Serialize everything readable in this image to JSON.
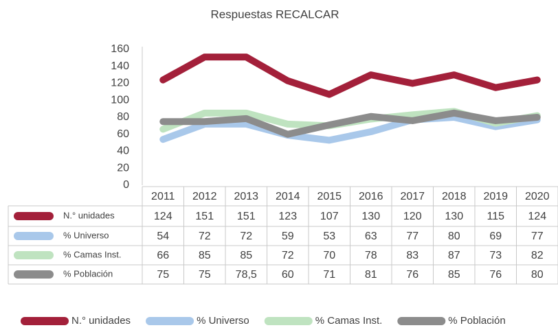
{
  "chart_data": {
    "type": "line",
    "title": "Respuestas RECALCAR",
    "categories": [
      "2011",
      "2012",
      "2013",
      "2014",
      "2015",
      "2016",
      "2017",
      "2018",
      "2019",
      "2020"
    ],
    "series": [
      {
        "name": "N.° unidades",
        "color": "#a3203a",
        "values": [
          124,
          151,
          151,
          123,
          107,
          130,
          120,
          130,
          115,
          124
        ]
      },
      {
        "name": "% Universo",
        "color": "#a9c8ea",
        "values": [
          54,
          72,
          72,
          59,
          53,
          63,
          77,
          80,
          69,
          77
        ]
      },
      {
        "name": "% Camas Inst.",
        "color": "#bfe3c0",
        "values": [
          66,
          85,
          85,
          72,
          70,
          78,
          83,
          87,
          73,
          82
        ]
      },
      {
        "name": "% Población",
        "color": "#8c8c8c",
        "values": [
          75,
          75,
          78.5,
          60,
          71,
          81,
          76,
          85,
          76,
          80
        ],
        "value_labels": [
          "75",
          "75",
          "78,5",
          "60",
          "71",
          "81",
          "76",
          "85",
          "76",
          "80"
        ]
      }
    ],
    "ylim": [
      0,
      160
    ],
    "yticks": [
      0,
      20,
      40,
      60,
      80,
      100,
      120,
      140,
      160
    ],
    "grid": false
  }
}
